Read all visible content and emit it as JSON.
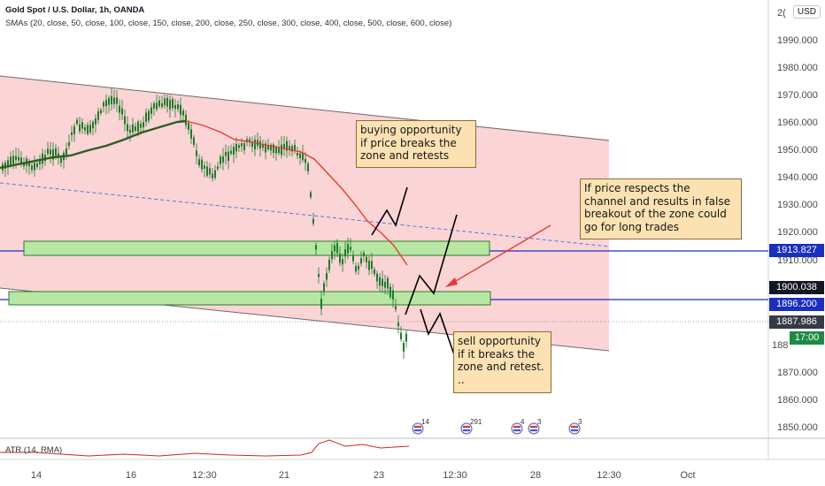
{
  "header": {
    "title": "Gold Spot / U.S. Dollar, 1h, OANDA",
    "indicator": "SMAs (20, close, 50, close, 100, close, 150, close, 200, close, 250, close, 300, close, 400, close, 500, close, 600, close)",
    "currency": "USD"
  },
  "price_axis": {
    "top_partial": "2(",
    "ticks": [
      "1990.000",
      "1980.000",
      "1970.000",
      "1960.000",
      "1950.000",
      "1940.000",
      "1930.000",
      "1920.000",
      "1910.000",
      "1880.000",
      "1870.000",
      "1860.000",
      "1850.000"
    ],
    "partial_1880": "188"
  },
  "price_tags": {
    "blue_upper": "1913.827",
    "dark": "1900.038",
    "blue_lower": "1896.200",
    "gray": "1887.986",
    "green_time": "17:00"
  },
  "time_axis": [
    "14",
    "16",
    "12:30",
    "21",
    "23",
    "12:30",
    "28",
    "12:30",
    "Oct"
  ],
  "lower_pane": {
    "label": "ATR (14, RMA)"
  },
  "annotations": {
    "buy": "buying opportunity\nif price breaks the\nzone and retests",
    "channel": "If price respects the\nchannel and results in false\nbreakout of the zone could\ngo for long trades",
    "sell": "sell opportunity\nif it breaks the\nzone and retest.\n.."
  },
  "events": [
    "14",
    "291",
    "4",
    "3",
    "3"
  ],
  "colors": {
    "channel_fill": "#fbd4d6",
    "zone_fill": "#b8e6a4",
    "zone_border": "#2c7c2c",
    "level_blue": "#1a2ec0",
    "candle": "#1e7a2a",
    "sma_green": "#2c5e22",
    "sma_red": "#e53d2f",
    "arrow_red": "#e53d2f",
    "tag_dark": "#131722",
    "tag_gray": "#363a45",
    "tag_green": "#1e8a44",
    "annotation_fill": "#fce2b3"
  }
}
